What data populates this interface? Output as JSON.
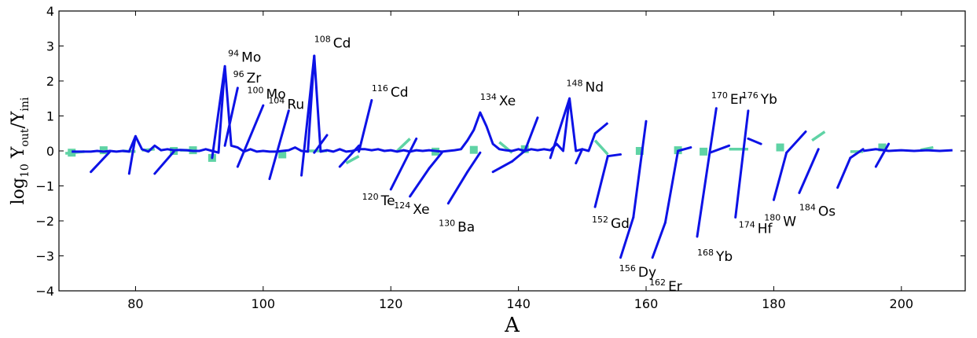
{
  "chart_data": {
    "type": "line",
    "xlabel": "A",
    "ylabel": "log10 Yout/Yini",
    "ylabel_parts": {
      "main": "log",
      "sub_base": "10",
      "y1": "Y",
      "sub1": "out",
      "slash": "/",
      "y2": "Y",
      "sub2": "ini"
    },
    "xlim": [
      68,
      210
    ],
    "ylim": [
      -4,
      4
    ],
    "x_ticks": [
      80,
      100,
      120,
      140,
      160,
      180,
      200
    ],
    "y_ticks": [
      -4,
      -3,
      -2,
      -1,
      0,
      1,
      2,
      3,
      4
    ],
    "grid": false,
    "colors": {
      "main_series": "#0d12e6",
      "secondary_series": "#5fd3a5",
      "axes": "#000000"
    },
    "series": [
      {
        "style": "blue-line",
        "points": [
          [
            70,
            -0.02
          ],
          [
            71,
            -0.02
          ],
          [
            72,
            -0.02
          ],
          [
            73,
            -0.02
          ],
          [
            74,
            0.0
          ],
          [
            75,
            -0.02
          ],
          [
            76,
            0.0
          ],
          [
            77,
            -0.02
          ],
          [
            78,
            0.0
          ],
          [
            79,
            -0.02
          ],
          [
            80,
            0.42
          ],
          [
            81,
            0.05
          ],
          [
            82,
            -0.02
          ],
          [
            83,
            0.15
          ],
          [
            84,
            0.02
          ],
          [
            85,
            0.05
          ],
          [
            86,
            0.02
          ],
          [
            87,
            0.03
          ],
          [
            88,
            0.02
          ],
          [
            89,
            0.0
          ],
          [
            90,
            0.0
          ],
          [
            91,
            0.05
          ],
          [
            92,
            0.0
          ],
          [
            93,
            -0.05
          ],
          [
            94,
            2.42
          ],
          [
            95,
            0.15
          ],
          [
            96,
            0.1
          ],
          [
            97,
            -0.02
          ],
          [
            98,
            0.05
          ],
          [
            99,
            -0.02
          ],
          [
            100,
            0.0
          ],
          [
            101,
            -0.02
          ],
          [
            102,
            -0.02
          ],
          [
            103,
            0.0
          ],
          [
            104,
            0.02
          ],
          [
            105,
            0.1
          ],
          [
            106,
            0.0
          ],
          [
            107,
            -0.02
          ],
          [
            108,
            2.72
          ],
          [
            109,
            -0.02
          ],
          [
            110,
            0.02
          ],
          [
            111,
            -0.02
          ],
          [
            112,
            0.05
          ],
          [
            113,
            -0.02
          ],
          [
            114,
            0.0
          ],
          [
            115,
            0.05
          ],
          [
            116,
            0.05
          ],
          [
            117,
            0.02
          ],
          [
            118,
            0.05
          ],
          [
            119,
            0.0
          ],
          [
            120,
            0.02
          ],
          [
            121,
            -0.02
          ],
          [
            122,
            0.02
          ],
          [
            123,
            -0.02
          ],
          [
            124,
            0.02
          ],
          [
            125,
            0.0
          ],
          [
            126,
            0.02
          ],
          [
            127,
            0.0
          ],
          [
            128,
            -0.02
          ],
          [
            129,
            0.0
          ],
          [
            130,
            0.02
          ],
          [
            131,
            0.05
          ],
          [
            132,
            0.3
          ],
          [
            133,
            0.6
          ],
          [
            134,
            1.1
          ],
          [
            135,
            0.7
          ],
          [
            136,
            0.2
          ],
          [
            137,
            0.05
          ],
          [
            138,
            0.02
          ],
          [
            139,
            0.0
          ],
          [
            140,
            0.05
          ],
          [
            141,
            0.0
          ],
          [
            142,
            0.05
          ],
          [
            143,
            0.02
          ],
          [
            144,
            0.05
          ],
          [
            145,
            0.02
          ],
          [
            146,
            0.2
          ],
          [
            147,
            0.0
          ],
          [
            148,
            1.5
          ],
          [
            149,
            0.0
          ],
          [
            150,
            0.05
          ],
          [
            151,
            0.0
          ],
          [
            152,
            0.5
          ],
          [
            153,
            0.65
          ],
          [
            154,
            0.8
          ]
        ],
        "segments_only": false
      }
    ],
    "diagonal_segments": [
      [
        [
          73,
          -0.6
        ],
        [
          76,
          -0.02
        ]
      ],
      [
        [
          79,
          -0.65
        ],
        [
          80,
          0.42
        ]
      ],
      [
        [
          83,
          -0.65
        ],
        [
          86,
          -0.02
        ]
      ],
      [
        [
          92,
          -0.2
        ],
        [
          94,
          2.42
        ]
      ],
      [
        [
          94,
          0.15
        ],
        [
          96,
          1.8
        ]
      ],
      [
        [
          96,
          -0.45
        ],
        [
          100,
          1.3
        ]
      ],
      [
        [
          101,
          -0.8
        ],
        [
          104,
          1.15
        ]
      ],
      [
        [
          106,
          -0.7
        ],
        [
          108,
          2.72
        ]
      ],
      [
        [
          108,
          -0.05
        ],
        [
          110,
          0.45
        ]
      ],
      [
        [
          112,
          -0.45
        ],
        [
          115,
          0.15
        ]
      ],
      [
        [
          115,
          -0.02
        ],
        [
          117,
          1.45
        ]
      ],
      [
        [
          120,
          -1.1
        ],
        [
          124,
          0.35
        ]
      ],
      [
        [
          123,
          -1.3
        ],
        [
          126,
          -0.5
        ]
      ],
      [
        [
          126,
          -0.5
        ],
        [
          128,
          -0.05
        ]
      ],
      [
        [
          129,
          -1.5
        ],
        [
          132,
          -0.6
        ]
      ],
      [
        [
          132,
          -0.6
        ],
        [
          134,
          -0.05
        ]
      ],
      [
        [
          136,
          -0.6
        ],
        [
          139,
          -0.3
        ]
      ],
      [
        [
          139,
          -0.3
        ],
        [
          141,
          0.0
        ]
      ],
      [
        [
          141,
          0.0
        ],
        [
          143,
          0.95
        ]
      ],
      [
        [
          145,
          -0.2
        ],
        [
          148,
          1.5
        ]
      ],
      [
        [
          149,
          -0.35
        ],
        [
          150,
          0.05
        ]
      ],
      [
        [
          152,
          -1.6
        ],
        [
          154,
          -0.15
        ]
      ],
      [
        [
          154,
          -0.15
        ],
        [
          156,
          -0.1
        ]
      ],
      [
        [
          156,
          -3.05
        ],
        [
          158,
          -1.9
        ]
      ],
      [
        [
          158,
          -1.9
        ],
        [
          160,
          0.85
        ]
      ],
      [
        [
          161,
          -3.05
        ],
        [
          163,
          -2.05
        ]
      ],
      [
        [
          163,
          -2.05
        ],
        [
          165,
          0.0
        ]
      ],
      [
        [
          165,
          0.0
        ],
        [
          167,
          0.1
        ]
      ],
      [
        [
          168,
          -2.45
        ],
        [
          171,
          1.22
        ]
      ],
      [
        [
          170,
          -0.05
        ],
        [
          173,
          0.15
        ]
      ],
      [
        [
          174,
          -1.9
        ],
        [
          176,
          1.15
        ]
      ],
      [
        [
          176,
          0.35
        ],
        [
          178,
          0.2
        ]
      ],
      [
        [
          180,
          -1.4
        ],
        [
          182,
          -0.05
        ]
      ],
      [
        [
          182,
          -0.05
        ],
        [
          185,
          0.55
        ]
      ],
      [
        [
          184,
          -1.2
        ],
        [
          187,
          0.05
        ]
      ],
      [
        [
          190,
          -1.05
        ],
        [
          192,
          -0.2
        ]
      ],
      [
        [
          192,
          -0.2
        ],
        [
          194,
          0.05
        ]
      ],
      [
        [
          196,
          -0.45
        ],
        [
          198,
          0.2
        ]
      ]
    ],
    "secondary_points": [
      [
        70,
        -0.05
      ],
      [
        75,
        0.02
      ],
      [
        86,
        0.0
      ],
      [
        89,
        0.02
      ],
      [
        92,
        -0.2
      ],
      [
        103,
        -0.1
      ],
      [
        127,
        -0.02
      ],
      [
        133,
        0.03
      ],
      [
        141,
        0.05
      ],
      [
        159,
        0.0
      ],
      [
        165,
        0.02
      ],
      [
        169,
        -0.02
      ],
      [
        181,
        0.1
      ],
      [
        197,
        0.1
      ]
    ],
    "secondary_dashes": [
      [
        [
          69,
          -0.07
        ],
        [
          72,
          -0.02
        ]
      ],
      [
        [
          78,
          0.0
        ],
        [
          80,
          -0.02
        ]
      ],
      [
        [
          81,
          0.02
        ],
        [
          83,
          0.05
        ]
      ],
      [
        [
          87,
          0.02
        ],
        [
          89,
          0.02
        ]
      ],
      [
        [
          107,
          0.0
        ],
        [
          110,
          0.0
        ]
      ],
      [
        [
          113,
          -0.35
        ],
        [
          115,
          -0.15
        ]
      ],
      [
        [
          121,
          0.0
        ],
        [
          123,
          0.35
        ]
      ],
      [
        [
          137,
          0.25
        ],
        [
          139,
          -0.05
        ]
      ],
      [
        [
          152,
          0.3
        ],
        [
          154,
          -0.1
        ]
      ],
      [
        [
          173,
          0.05
        ],
        [
          176,
          0.05
        ]
      ],
      [
        [
          186,
          0.3
        ],
        [
          188,
          0.55
        ]
      ],
      [
        [
          192,
          -0.02
        ],
        [
          194,
          -0.02
        ]
      ],
      [
        [
          203,
          0.03
        ],
        [
          205,
          0.1
        ]
      ]
    ],
    "tail_series": [
      [
        194,
        0.0
      ],
      [
        196,
        0.05
      ],
      [
        198,
        0.0
      ],
      [
        200,
        0.02
      ],
      [
        202,
        0.0
      ],
      [
        204,
        0.02
      ],
      [
        206,
        0.0
      ],
      [
        208,
        0.02
      ]
    ],
    "annotations": [
      {
        "mass": "94",
        "el": "Mo",
        "x": 94.5,
        "y": 2.55
      },
      {
        "mass": "96",
        "el": "Zr",
        "x": 95.3,
        "y": 1.95
      },
      {
        "mass": "100",
        "el": "Mo",
        "x": 97.5,
        "y": 1.5
      },
      {
        "mass": "104",
        "el": "Ru",
        "x": 100.8,
        "y": 1.2
      },
      {
        "mass": "108",
        "el": "Cd",
        "x": 108,
        "y": 2.95
      },
      {
        "mass": "116",
        "el": "Cd",
        "x": 117,
        "y": 1.55
      },
      {
        "mass": "134",
        "el": "Xe",
        "x": 134,
        "y": 1.3
      },
      {
        "mass": "148",
        "el": "Nd",
        "x": 147.5,
        "y": 1.7
      },
      {
        "mass": "170",
        "el": "Er",
        "x": 170.2,
        "y": 1.35
      },
      {
        "mass": "176",
        "el": "Yb",
        "x": 175,
        "y": 1.35
      },
      {
        "mass": "120",
        "el": "Te",
        "x": 115.5,
        "y": -1.55
      },
      {
        "mass": "124",
        "el": "Xe",
        "x": 120.5,
        "y": -1.8
      },
      {
        "mass": "130",
        "el": "Ba",
        "x": 127.5,
        "y": -2.3
      },
      {
        "mass": "152",
        "el": "Gd",
        "x": 151.5,
        "y": -2.2
      },
      {
        "mass": "156",
        "el": "Dy",
        "x": 155.8,
        "y": -3.6
      },
      {
        "mass": "162",
        "el": "Er",
        "x": 160.5,
        "y": -4.0
      },
      {
        "mass": "168",
        "el": "Yb",
        "x": 168,
        "y": -3.15
      },
      {
        "mass": "174",
        "el": "Hf",
        "x": 174.5,
        "y": -2.35
      },
      {
        "mass": "180",
        "el": "W",
        "x": 178.5,
        "y": -2.15
      },
      {
        "mass": "184",
        "el": "Os",
        "x": 184,
        "y": -1.85
      }
    ]
  }
}
